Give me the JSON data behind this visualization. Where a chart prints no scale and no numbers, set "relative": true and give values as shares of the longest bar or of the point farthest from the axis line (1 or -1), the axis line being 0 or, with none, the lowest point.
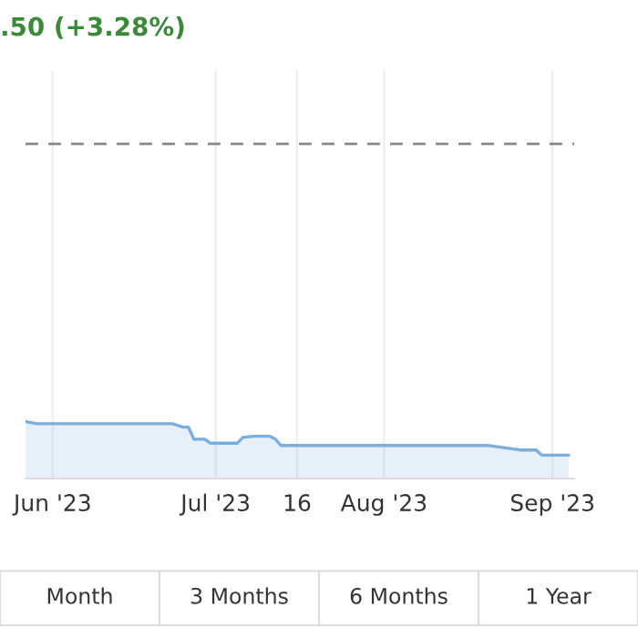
{
  "chart_data": {
    "type": "area",
    "title": ".50 (+3.28%)",
    "relative": true,
    "x": [
      "2023-05-27",
      "2023-05-29",
      "2023-06-23",
      "2023-06-25",
      "2023-06-26",
      "2023-06-27",
      "2023-06-29",
      "2023-06-30",
      "2023-07-05",
      "2023-07-06",
      "2023-07-08",
      "2023-07-11",
      "2023-07-12",
      "2023-07-13",
      "2023-08-20",
      "2023-08-23",
      "2023-08-26",
      "2023-08-29",
      "2023-08-30",
      "2023-09-04"
    ],
    "series": [
      {
        "color": "#7aaede",
        "values": [
          1,
          0.96,
          0.96,
          0.9,
          0.9,
          0.69,
          0.69,
          0.62,
          0.62,
          0.72,
          0.74,
          0.74,
          0.69,
          0.58,
          0.58,
          0.54,
          0.5,
          0.5,
          0.41,
          0.41
        ]
      }
    ],
    "xlim": [
      "2023-05-27",
      "2023-09-05"
    ],
    "xticks": [
      {
        "value": "2023-06-01",
        "label": "Jun '23"
      },
      {
        "value": "2023-07-01",
        "label": "Jul '23"
      },
      {
        "value": "2023-07-16",
        "label": "16"
      },
      {
        "value": "2023-08-01",
        "label": "Aug '23"
      },
      {
        "value": "2023-09-01",
        "label": "Sep '23"
      }
    ],
    "ref_lines": [
      {
        "axis": "y",
        "value": 5.87,
        "color": "#888888",
        "line_style": "dashed"
      }
    ],
    "grid": "x",
    "annotations": [
      "Month",
      "3 Months",
      "6 Months",
      "1 Year"
    ]
  }
}
